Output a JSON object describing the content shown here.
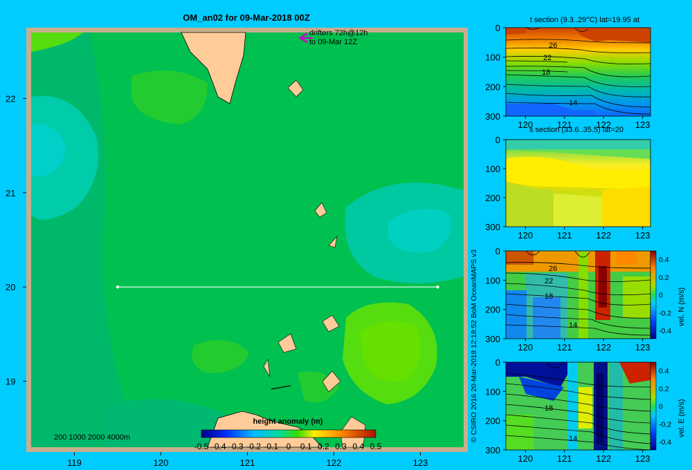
{
  "main_map": {
    "title": "OM_an02 for 09-Mar-2018 00Z",
    "drifter_note_line1": "drifters 72h@12h",
    "drifter_note_line2": "to 09-Mar 12Z",
    "depth_legend": "200  1000  2000  4000m",
    "colorbar_title": "height anomaly  (m)",
    "colorbar_ticks": [
      "-0.5",
      "-0.4",
      "-0.3",
      "-0.2",
      "-0.1",
      "0",
      "0.1",
      "0.2",
      "0.3",
      "0.4",
      "0.5"
    ],
    "x_ticks": [
      "119",
      "120",
      "121",
      "122",
      "123"
    ],
    "y_ticks": [
      "22",
      "21",
      "20",
      "19"
    ],
    "section_line": {
      "lat": 20,
      "lon_start": 119.5,
      "lon_end": 123.2
    }
  },
  "side_credit": "© CSIRO 2016   20-Mar-2018 12:18:52 BoM OceanMAPS v3",
  "panels": [
    {
      "id": "temp",
      "title": "t section (9.3..29°C) lat=19.95 at",
      "contour_labels": [
        "26",
        "22",
        "18",
        "14"
      ],
      "y_ticks": [
        "0",
        "100",
        "200",
        "300"
      ],
      "x_ticks": [
        "120",
        "121",
        "122",
        "123"
      ]
    },
    {
      "id": "salt",
      "title": "s section (33.6..35.5) lat=20",
      "y_ticks": [
        "0",
        "100",
        "200",
        "300"
      ],
      "x_ticks": [
        "120",
        "121",
        "122",
        "123"
      ]
    },
    {
      "id": "veln",
      "title": "",
      "contour_labels": [
        "26",
        "22",
        "18",
        "14"
      ],
      "y_ticks": [
        "0",
        "100",
        "200",
        "300"
      ],
      "x_ticks": [
        "120",
        "121",
        "122",
        "123"
      ],
      "cbar_label": "vel. N  (m/s)",
      "cbar_ticks": [
        "0.4",
        "0.2",
        "0",
        "-0.2",
        "-0.4"
      ]
    },
    {
      "id": "vele",
      "title": "",
      "contour_labels": [
        "18",
        "14"
      ],
      "y_ticks": [
        "0",
        "100",
        "200",
        "300"
      ],
      "x_ticks": [
        "120",
        "121",
        "122",
        "123"
      ],
      "cbar_label": "vel. E  (m/s)",
      "cbar_ticks": [
        "0.4",
        "0.2",
        "0",
        "-0.2",
        "-0.4"
      ]
    }
  ],
  "chart_data": [
    {
      "type": "heatmap",
      "title": "OM_an02 for 09-Mar-2018 00Z",
      "xlim": [
        118.5,
        123.5
      ],
      "ylim": [
        18.3,
        22.7
      ],
      "x_tick_values": [
        119,
        120,
        121,
        122,
        123
      ],
      "y_tick_values": [
        19,
        20,
        21,
        22
      ],
      "colorbar": {
        "label": "height anomaly  (m)",
        "range": [
          -0.5,
          0.5
        ]
      },
      "field_summary": [
        {
          "lon": 118.6,
          "lat": 21.5,
          "value": -0.15
        },
        {
          "lon": 122.8,
          "lat": 20.6,
          "value": -0.08
        },
        {
          "lon": 122.4,
          "lat": 19.4,
          "value": 0.04
        },
        {
          "lon": 120.5,
          "lat": 20.0,
          "value": -0.02
        }
      ]
    },
    {
      "type": "heatmap",
      "title": "t section (9.3..29°C) lat=19.95 at",
      "xlim": [
        119.5,
        123.2
      ],
      "ylim": [
        300,
        0
      ],
      "value_range": [
        9.3,
        29
      ],
      "contours": [
        26,
        22,
        18,
        14
      ]
    },
    {
      "type": "heatmap",
      "title": "s section (33.6..35.5) lat=20",
      "xlim": [
        119.5,
        123.2
      ],
      "ylim": [
        300,
        0
      ],
      "value_range": [
        33.6,
        35.5
      ]
    },
    {
      "type": "heatmap",
      "title": "",
      "xlim": [
        119.5,
        123.2
      ],
      "ylim": [
        300,
        0
      ],
      "colorbar": {
        "label": "vel. N  (m/s)",
        "range": [
          -0.4,
          0.4
        ]
      }
    },
    {
      "type": "heatmap",
      "title": "",
      "xlim": [
        119.5,
        123.2
      ],
      "ylim": [
        300,
        0
      ],
      "colorbar": {
        "label": "vel. E  (m/s)",
        "range": [
          -0.4,
          0.4
        ]
      }
    }
  ],
  "colors": {
    "background": "#00ccff",
    "land": "#ffcc99",
    "map_field": "#00c030",
    "section_line": "#ffffff"
  }
}
